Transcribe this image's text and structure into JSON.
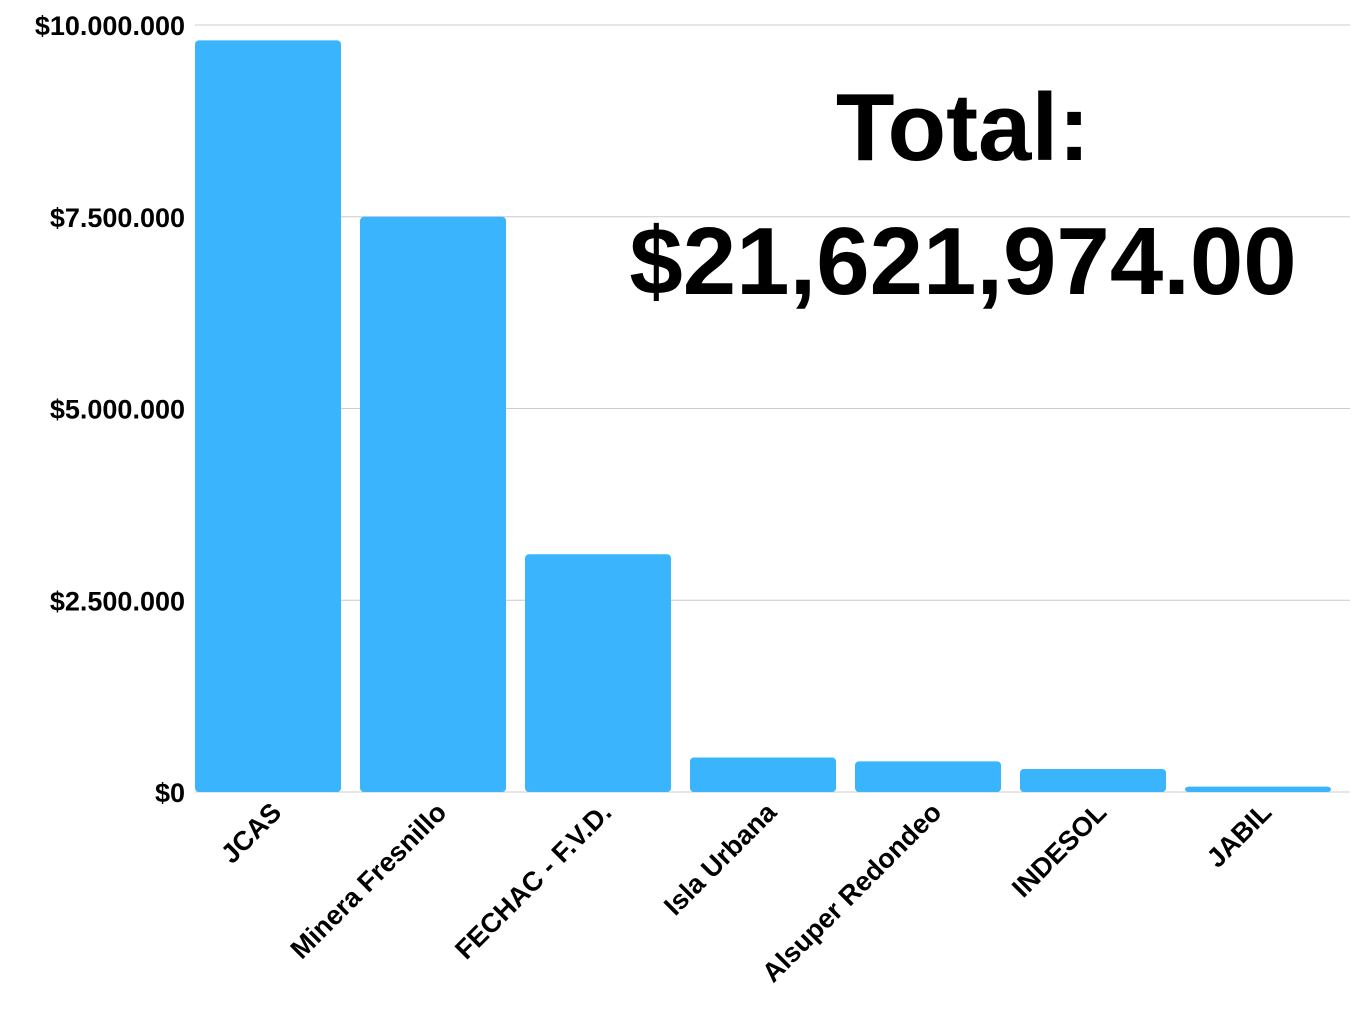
{
  "chart_data": {
    "type": "bar",
    "categories": [
      "JCAS",
      "Minera Fresnillo",
      "FECHAC - F.V.D.",
      "Isla Urbana",
      "Alsuper Redondeo",
      "INDESOL",
      "JABIL"
    ],
    "values": [
      9800000,
      7500000,
      3100000,
      450000,
      400000,
      300000,
      70000
    ],
    "y_ticks": [
      {
        "value": 0,
        "label": "$0"
      },
      {
        "value": 2500000,
        "label": "$2.500.000"
      },
      {
        "value": 5000000,
        "label": "$5.000.000"
      },
      {
        "value": 7500000,
        "label": "$7.500.000"
      },
      {
        "value": 10000000,
        "label": "$10.000.000"
      }
    ],
    "ylim": [
      0,
      10000000
    ],
    "grid": true,
    "bar_color": "#39b4fd",
    "annotation": {
      "label": "Total:",
      "value": "$21,621,974.00"
    }
  }
}
